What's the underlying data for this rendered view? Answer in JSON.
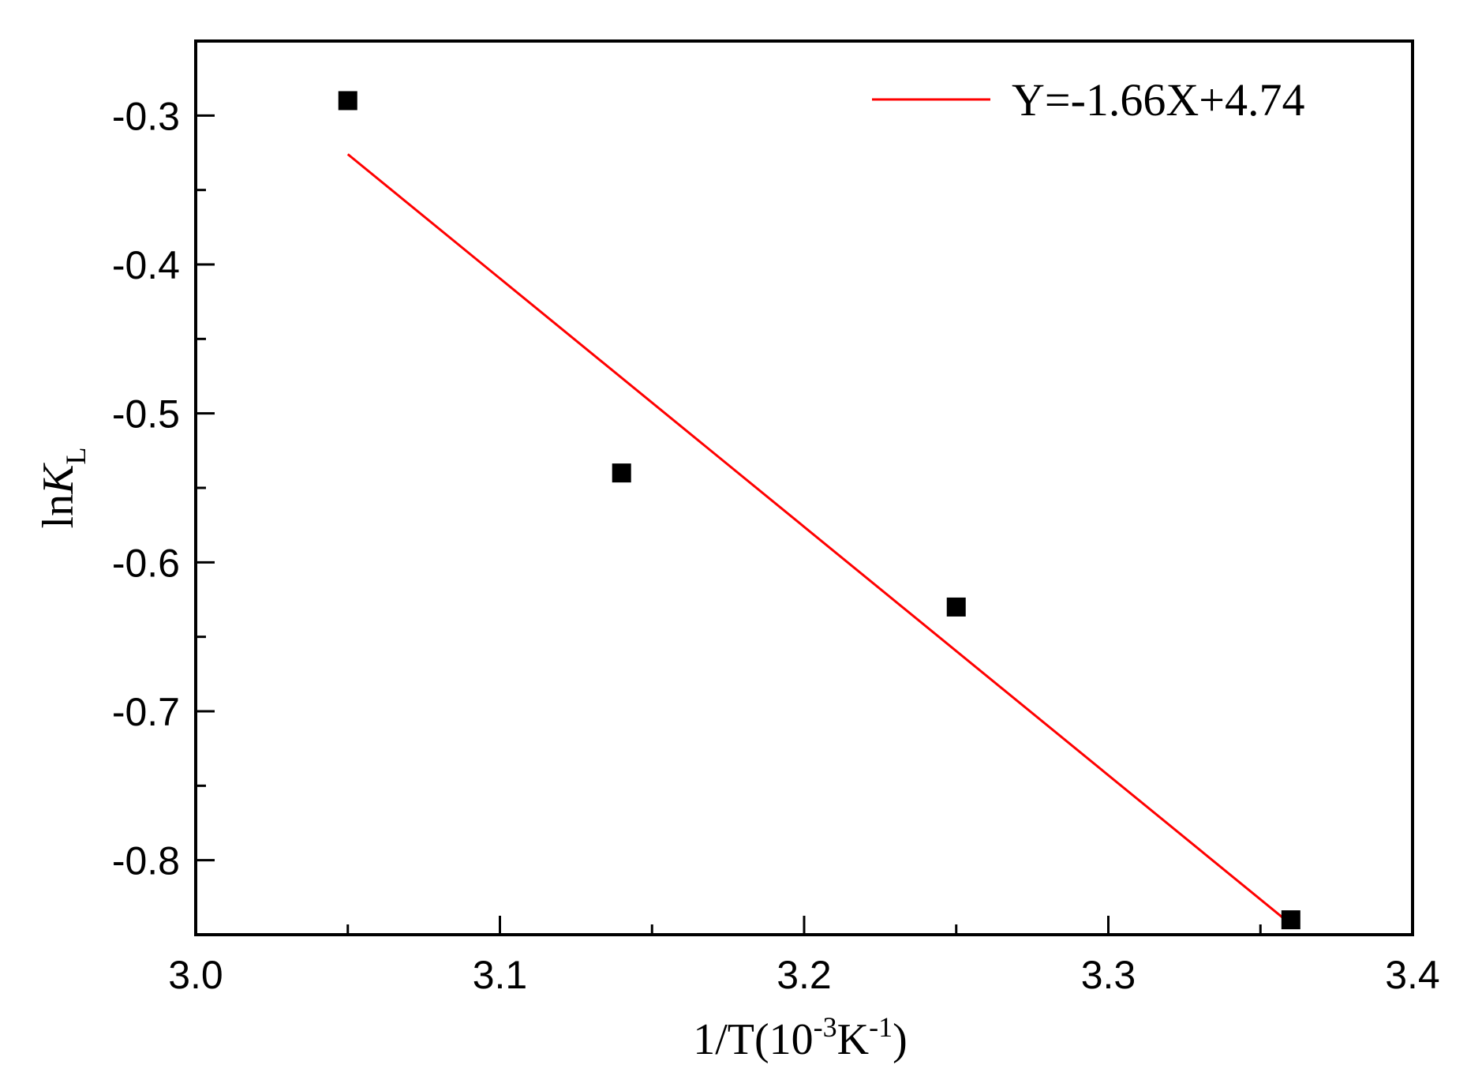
{
  "chart_data": {
    "type": "scatter",
    "xlim": [
      3.0,
      3.4
    ],
    "ylim": [
      -0.85,
      -0.25
    ],
    "x_ticks": [
      3.0,
      3.1,
      3.2,
      3.3,
      3.4
    ],
    "x_tick_labels": [
      "3.0",
      "3.1",
      "3.2",
      "3.3",
      "3.4"
    ],
    "y_ticks": [
      -0.3,
      -0.4,
      -0.5,
      -0.6,
      -0.7,
      -0.8
    ],
    "y_tick_labels": [
      "-0.3",
      "-0.4",
      "-0.5",
      "-0.6",
      "-0.7",
      "-0.8"
    ],
    "xlabel": {
      "main": "1/T(10",
      "sup1": "-3",
      "mid": "K",
      "sup2": "-1",
      "end": ")"
    },
    "ylabel": {
      "prefix": "ln",
      "var": "K",
      "sub": "L"
    },
    "series": [
      {
        "type": "scatter",
        "marker": "square",
        "color": "#000000",
        "x": [
          3.05,
          3.14,
          3.25,
          3.36
        ],
        "y": [
          -0.29,
          -0.54,
          -0.63,
          -0.84
        ]
      },
      {
        "type": "line",
        "name": "Y=-1.66X+4.74",
        "color": "#ff0000",
        "x": [
          3.05,
          3.36
        ],
        "y": [
          -0.326,
          -0.843
        ]
      }
    ],
    "legend_position": "top-right",
    "grid": false
  }
}
